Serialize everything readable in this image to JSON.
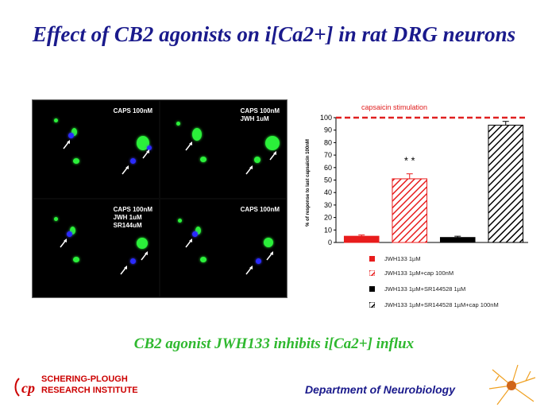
{
  "title": "Effect of CB2 agonists on i[Ca2+] in rat DRG neurons",
  "subtitle": "CB2 agonist JWH133 inhibits i[Ca2+] influx",
  "panels": [
    {
      "label": "CAPS 100nM"
    },
    {
      "label": "CAPS 100nM\nJWH 1uM"
    },
    {
      "label": "CAPS 100nM\nJWH 1uM\nSR144uM"
    },
    {
      "label": "CAPS 100nM"
    }
  ],
  "chart_data": {
    "type": "bar",
    "ylabel": "% of response to last capsaicin 100nM",
    "ylim": [
      0,
      100
    ],
    "yticks": [
      0,
      10,
      20,
      30,
      40,
      50,
      60,
      70,
      80,
      90,
      100
    ],
    "reference_line": {
      "label": "capsaicin stimulation",
      "value": 100,
      "color": "#e02020"
    },
    "categories": [
      "JWH133 1µM",
      "JWH133 1µM+cap 100nM",
      "JWH133 1µM+SR144528 1µM",
      "JWH133 1µM+SR144528 1µM+cap 100nM"
    ],
    "values": [
      5,
      51,
      4,
      94
    ],
    "errors": [
      1,
      4,
      1,
      3
    ],
    "colors": [
      "#e81c1c",
      "#e81c1c",
      "#000000",
      "#000000"
    ],
    "hatched": [
      false,
      true,
      false,
      true
    ],
    "annotation": "* *"
  },
  "footer": {
    "org_line1": "SCHERING-PLOUGH",
    "org_line2": "RESEARCH INSTITUTE",
    "department": "Department of Neurobiology"
  },
  "colors": {
    "title": "#1a1a8c",
    "subtitle": "#2eb82e",
    "org": "#cc0000"
  }
}
